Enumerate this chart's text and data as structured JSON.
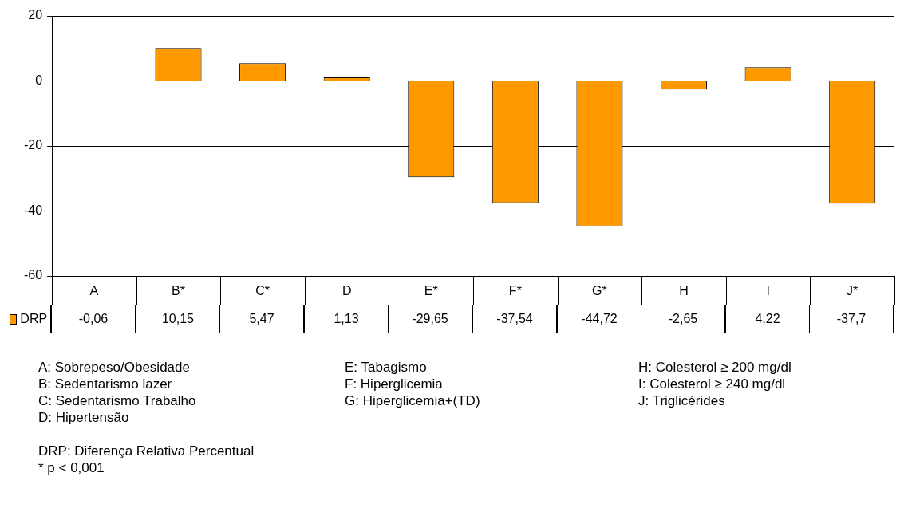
{
  "chart_data": {
    "type": "bar",
    "categories": [
      "A",
      "B*",
      "C*",
      "D",
      "E*",
      "F*",
      "G*",
      "H",
      "I",
      "J*"
    ],
    "series": [
      {
        "name": "DRP",
        "color": "#ff9900",
        "values": [
          -0.06,
          10.15,
          5.47,
          1.13,
          -29.65,
          -37.54,
          -44.72,
          -2.65,
          4.22,
          -37.7
        ],
        "value_labels": [
          "-0,06",
          "10,15",
          "5,47",
          "1,13",
          "-29,65",
          "-37,54",
          "-44,72",
          "-2,65",
          "4,22",
          "-37,7"
        ]
      }
    ],
    "ylim": [
      -60,
      20
    ],
    "yticks": [
      -60,
      -40,
      -20,
      0,
      20
    ],
    "grid": "y",
    "legend": "bottom left",
    "annotations": [
      "A: Sobrepeso/Obesidade",
      "B: Sedentarismo lazer",
      "C: Sedentarismo Trabalho",
      "D: Hipertensão",
      "E: Tabagismo",
      "F: Hiperglicemia",
      "G: Hiperglicemia+(TD)",
      "H: Colesterol ≥ 200 mg/dl",
      "I: Colesterol ≥ 240 mg/dl",
      "J: Triglicérides",
      "DRP: Diferença Relativa Percentual",
      "* p < 0,001"
    ]
  }
}
